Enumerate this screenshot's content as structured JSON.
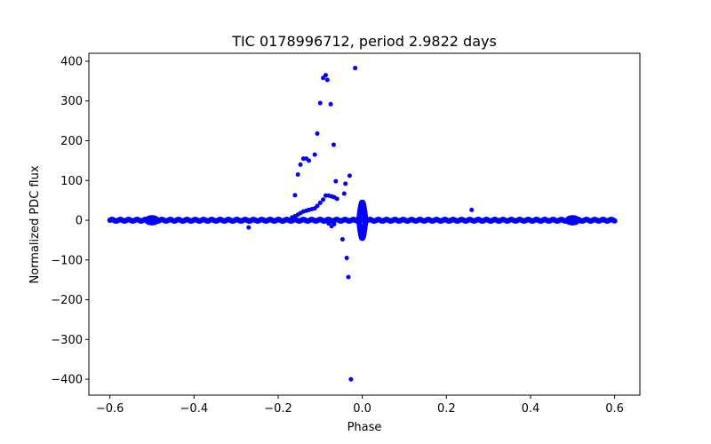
{
  "chart_data": {
    "type": "scatter",
    "title": "TIC 0178996712, period 2.9822 days",
    "xlabel": "Phase",
    "ylabel": "Normalized PDC flux",
    "xlim": [
      -0.65,
      0.66
    ],
    "ylim": [
      -440,
      420
    ],
    "xticks": [
      -0.6,
      -0.4,
      -0.2,
      0.0,
      0.2,
      0.4,
      0.6
    ],
    "xtick_labels": [
      "−0.6",
      "−0.4",
      "−0.2",
      "0.0",
      "0.2",
      "0.4",
      "0.6"
    ],
    "yticks": [
      -400,
      -300,
      -200,
      -100,
      0,
      100,
      200,
      300,
      400
    ],
    "ytick_labels": [
      "−400",
      "−300",
      "−200",
      "−100",
      "0",
      "100",
      "200",
      "300",
      "400"
    ],
    "grid": false,
    "color": "#0000ff",
    "baseline": {
      "x_range": [
        -0.6,
        0.6
      ],
      "y": 0,
      "scatter_amplitude": 2
    },
    "eclipse_bulges": [
      {
        "x": -0.5,
        "y": 0,
        "half_height": 6
      },
      {
        "x": 0.5,
        "y": 0,
        "half_height": 6
      }
    ],
    "transit_oscillation": {
      "x_range": [
        -0.008,
        0.008
      ],
      "amplitude": 45
    },
    "outliers": [
      {
        "x": -0.017,
        "y": 383
      },
      {
        "x": -0.087,
        "y": 365
      },
      {
        "x": -0.093,
        "y": 358
      },
      {
        "x": -0.083,
        "y": 353
      },
      {
        "x": -0.1,
        "y": 295
      },
      {
        "x": -0.075,
        "y": 292
      },
      {
        "x": -0.107,
        "y": 218
      },
      {
        "x": -0.068,
        "y": 190
      },
      {
        "x": -0.113,
        "y": 165
      },
      {
        "x": -0.14,
        "y": 155
      },
      {
        "x": -0.133,
        "y": 155
      },
      {
        "x": -0.127,
        "y": 150
      },
      {
        "x": -0.147,
        "y": 140
      },
      {
        "x": -0.153,
        "y": 115
      },
      {
        "x": -0.03,
        "y": 112
      },
      {
        "x": -0.063,
        "y": 98
      },
      {
        "x": -0.04,
        "y": 92
      },
      {
        "x": -0.043,
        "y": 67
      },
      {
        "x": -0.16,
        "y": 63
      },
      {
        "x": -0.087,
        "y": 62
      },
      {
        "x": -0.08,
        "y": 62
      },
      {
        "x": -0.073,
        "y": 60
      },
      {
        "x": -0.067,
        "y": 58
      },
      {
        "x": -0.06,
        "y": 54
      },
      {
        "x": -0.093,
        "y": 52
      },
      {
        "x": -0.1,
        "y": 44
      },
      {
        "x": -0.107,
        "y": 36
      },
      {
        "x": -0.113,
        "y": 30
      },
      {
        "x": -0.12,
        "y": 28
      },
      {
        "x": -0.127,
        "y": 26
      },
      {
        "x": -0.133,
        "y": 24
      },
      {
        "x": -0.14,
        "y": 22
      },
      {
        "x": -0.147,
        "y": 18
      },
      {
        "x": -0.153,
        "y": 14
      },
      {
        "x": -0.16,
        "y": 10
      },
      {
        "x": -0.167,
        "y": 7
      },
      {
        "x": 0.26,
        "y": 26
      },
      {
        "x": -0.27,
        "y": -18
      },
      {
        "x": -0.073,
        "y": -15
      },
      {
        "x": -0.067,
        "y": -10
      },
      {
        "x": -0.08,
        "y": -8
      },
      {
        "x": -0.047,
        "y": -48
      },
      {
        "x": -0.037,
        "y": -95
      },
      {
        "x": -0.033,
        "y": -143
      },
      {
        "x": -0.027,
        "y": -400
      }
    ]
  }
}
